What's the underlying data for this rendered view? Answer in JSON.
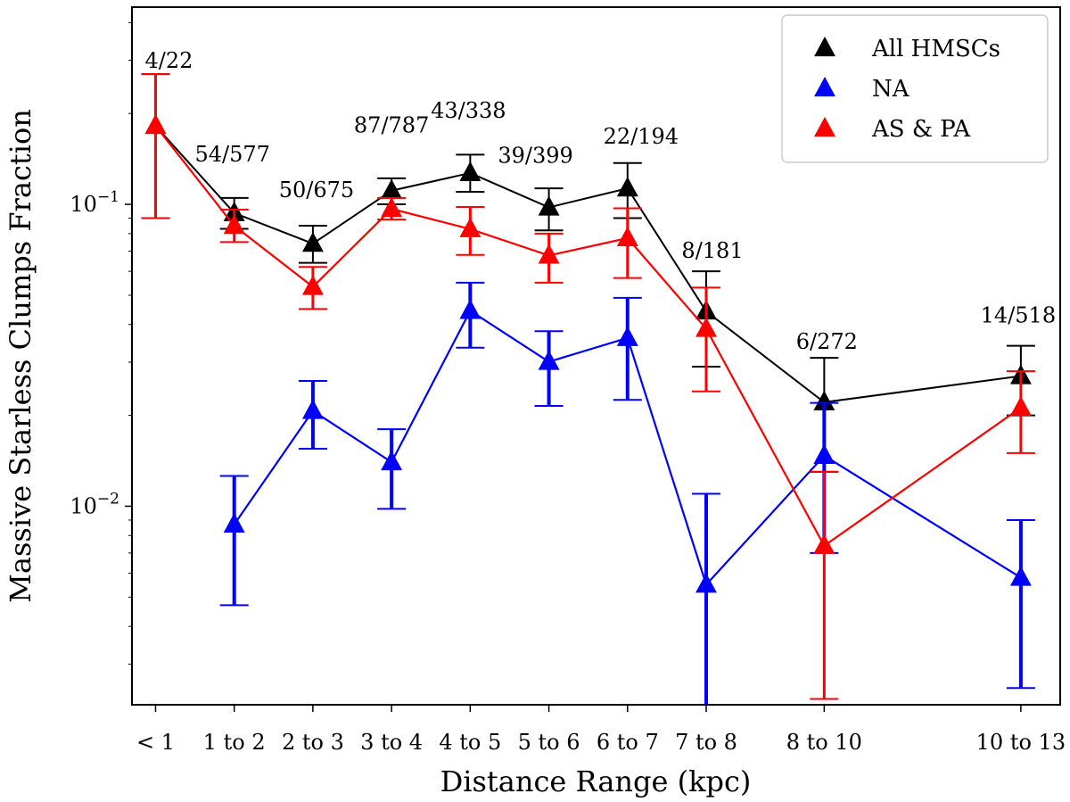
{
  "chart_data": {
    "type": "line",
    "title": "",
    "xlabel": "Distance Range (kpc)",
    "ylabel": "Massive Starless Clumps Fraction",
    "yscale": "log",
    "ylim": [
      0.0022,
      0.45
    ],
    "xlim": [
      -0.3,
      11.5
    ],
    "x_positions": [
      0,
      1,
      2,
      3,
      4,
      5,
      6,
      7,
      8.5,
      11
    ],
    "categories": [
      "< 1",
      "1 to 2",
      "2 to 3",
      "3 to 4",
      "4 to 5",
      "5 to 6",
      "6 to 7",
      "7 to 8",
      "8 to 10",
      "10 to 13"
    ],
    "y_ticks": [
      {
        "value": 0.1,
        "base": "10",
        "exp": "−1"
      },
      {
        "value": 0.01,
        "base": "10",
        "exp": "−2"
      }
    ],
    "grid": false,
    "legend_position": "top-right",
    "fraction_labels": [
      "4/22",
      "54/577",
      "50/675",
      "87/787",
      "43/338",
      "39/399",
      "22/194",
      "8/181",
      "6/272",
      "14/518"
    ],
    "series": [
      {
        "name": "All HMSCs",
        "color": "#000000",
        "values": [
          0.182,
          0.0936,
          0.0741,
          0.111,
          0.127,
          0.0977,
          0.113,
          0.0442,
          0.0221,
          0.027
        ],
        "err_low": [
          0.09,
          0.083,
          0.064,
          0.1,
          0.11,
          0.082,
          0.09,
          0.029,
          0.013,
          0.02
        ],
        "err_high": [
          0.27,
          0.105,
          0.085,
          0.122,
          0.146,
          0.113,
          0.137,
          0.06,
          0.031,
          0.034
        ]
      },
      {
        "name": "NA",
        "color": "#0000ff",
        "values": [
          null,
          0.0087,
          0.0207,
          0.014,
          0.0444,
          0.0301,
          0.0361,
          0.0055,
          0.0147,
          0.0058
        ],
        "err_low": [
          null,
          0.0047,
          0.0155,
          0.0098,
          0.0335,
          0.0215,
          0.0225,
          0.0022,
          0.007,
          0.0025
        ],
        "err_high": [
          null,
          0.0126,
          0.026,
          0.018,
          0.055,
          0.038,
          0.049,
          0.011,
          0.022,
          0.009
        ]
      },
      {
        "name": "AS & PA",
        "color": "#ff0000",
        "values": [
          0.182,
          0.0849,
          0.0533,
          0.0966,
          0.0828,
          0.0677,
          0.0773,
          0.0387,
          0.0074,
          0.0212
        ],
        "err_low": [
          0.09,
          0.075,
          0.045,
          0.089,
          0.068,
          0.055,
          0.057,
          0.024,
          0.0023,
          0.015
        ],
        "err_high": [
          0.27,
          0.096,
          0.062,
          0.105,
          0.098,
          0.08,
          0.097,
          0.053,
          0.013,
          0.028
        ]
      }
    ]
  }
}
